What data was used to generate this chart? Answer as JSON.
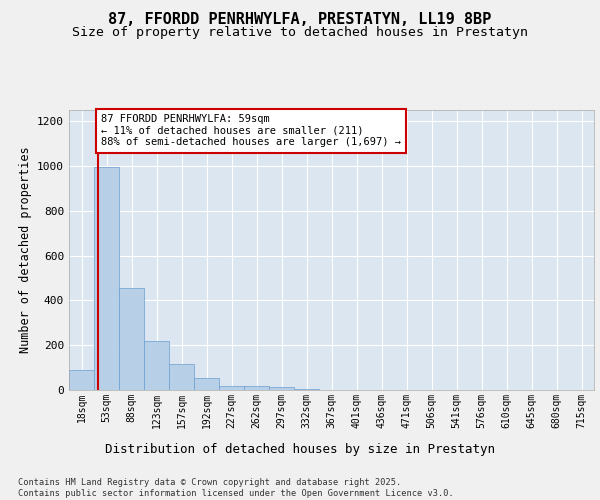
{
  "title_line1": "87, FFORDD PENRHWYLFA, PRESTATYN, LL19 8BP",
  "title_line2": "Size of property relative to detached houses in Prestatyn",
  "xlabel": "Distribution of detached houses by size in Prestatyn",
  "ylabel": "Number of detached properties",
  "bar_labels": [
    "18sqm",
    "53sqm",
    "88sqm",
    "123sqm",
    "157sqm",
    "192sqm",
    "227sqm",
    "262sqm",
    "297sqm",
    "332sqm",
    "367sqm",
    "401sqm",
    "436sqm",
    "471sqm",
    "506sqm",
    "541sqm",
    "576sqm",
    "610sqm",
    "645sqm",
    "680sqm",
    "715sqm"
  ],
  "bar_values": [
    88,
    995,
    455,
    220,
    115,
    55,
    20,
    18,
    12,
    5,
    0,
    0,
    0,
    0,
    0,
    0,
    0,
    0,
    0,
    0,
    0
  ],
  "bar_color": "#b8cfe8",
  "bar_edge_color": "#6a9fd0",
  "bar_edge_width": 0.5,
  "vline_color": "#cc0000",
  "vline_x_data": 0.67,
  "annotation_text": "87 FFORDD PENRHWYLFA: 59sqm\n← 11% of detached houses are smaller (211)\n88% of semi-detached houses are larger (1,697) →",
  "annotation_box_color": "#ffffff",
  "annotation_edge_color": "#cc0000",
  "ylim": [
    0,
    1250
  ],
  "yticks": [
    0,
    200,
    400,
    600,
    800,
    1000,
    1200
  ],
  "background_color": "#dce6f0",
  "grid_color": "#ffffff",
  "fig_background": "#f0f0f0",
  "footnote": "Contains HM Land Registry data © Crown copyright and database right 2025.\nContains public sector information licensed under the Open Government Licence v3.0.",
  "title_fontsize": 11,
  "subtitle_fontsize": 9.5,
  "axis_label_fontsize": 8.5,
  "tick_fontsize": 7,
  "annotation_fontsize": 7.5,
  "footnote_fontsize": 6.2
}
